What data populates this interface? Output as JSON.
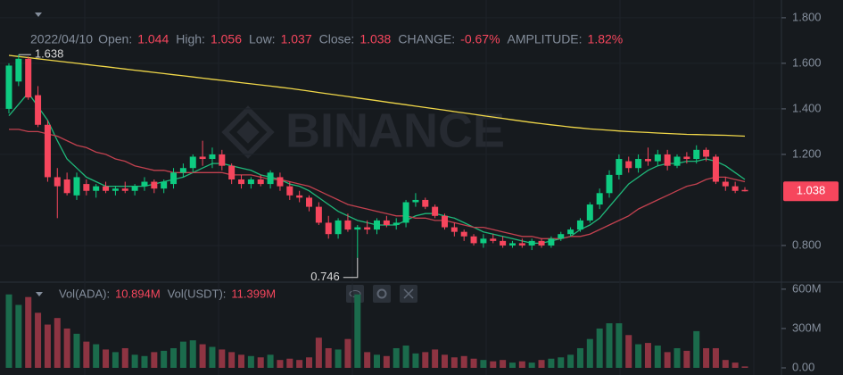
{
  "chart_data": {
    "type": "candlestick",
    "watermark": "BINANCE",
    "date": "2022/04/10",
    "header": [
      {
        "label": "Open:",
        "field": "open"
      },
      {
        "label": "High:",
        "field": "high"
      },
      {
        "label": "Low:",
        "field": "low"
      },
      {
        "label": "Close:",
        "field": "close"
      },
      {
        "label": "CHANGE:",
        "value": "-0.67%"
      },
      {
        "label": "AMPLITUDE:",
        "value": "1.82%"
      }
    ],
    "categories": [
      null,
      null,
      null,
      null,
      null,
      null,
      null,
      null,
      null,
      null,
      null,
      null,
      null,
      null,
      null,
      null,
      null,
      null,
      null,
      null,
      null,
      null,
      null,
      null,
      null,
      null,
      null,
      null,
      null,
      null,
      null,
      null,
      null,
      null,
      null,
      null,
      null,
      null,
      null,
      null,
      null,
      null,
      null,
      null,
      null,
      null,
      null,
      null,
      null,
      null,
      null,
      null,
      null,
      null,
      null,
      null,
      null,
      null,
      null,
      null,
      null,
      null,
      null,
      null,
      null,
      null,
      null,
      null,
      null,
      null,
      null,
      null,
      null,
      null,
      null,
      null,
      null
    ],
    "open": [
      1.4,
      1.52,
      1.62,
      1.46,
      1.33,
      1.1,
      1.09,
      1.02,
      1.07,
      1.04,
      1.06,
      1.04,
      1.05,
      1.04,
      1.06,
      1.08,
      1.05,
      1.07,
      1.12,
      1.14,
      1.19,
      1.18,
      1.2,
      1.15,
      1.09,
      1.07,
      1.09,
      1.07,
      1.1,
      1.06,
      1.02,
      1.01,
      0.97,
      0.9,
      0.85,
      0.91,
      0.87,
      0.88,
      0.87,
      0.91,
      0.89,
      0.9,
      0.99,
      1.0,
      0.97,
      0.93,
      0.88,
      0.86,
      0.84,
      0.81,
      0.83,
      0.82,
      0.8,
      0.81,
      0.8,
      0.82,
      0.8,
      0.83,
      0.85,
      0.87,
      0.91,
      0.98,
      1.03,
      1.11,
      1.17,
      1.14,
      1.18,
      1.17,
      1.2,
      1.15,
      1.19,
      1.18,
      1.22,
      1.19,
      1.08,
      1.06,
      1.044
    ],
    "high": [
      1.6,
      1.638,
      1.63,
      1.5,
      1.35,
      1.14,
      1.12,
      1.12,
      1.09,
      1.07,
      1.08,
      1.06,
      1.08,
      1.07,
      1.1,
      1.09,
      1.09,
      1.14,
      1.16,
      1.2,
      1.26,
      1.23,
      1.22,
      1.16,
      1.11,
      1.1,
      1.11,
      1.13,
      1.12,
      1.08,
      1.04,
      1.02,
      0.99,
      0.93,
      0.92,
      0.94,
      0.89,
      0.91,
      0.92,
      0.93,
      0.92,
      1.0,
      1.03,
      1.01,
      0.98,
      0.94,
      0.9,
      0.87,
      0.85,
      0.85,
      0.85,
      0.84,
      0.82,
      0.83,
      0.83,
      0.83,
      0.84,
      0.86,
      0.88,
      0.92,
      0.99,
      1.05,
      1.13,
      1.2,
      1.19,
      1.2,
      1.23,
      1.22,
      1.22,
      1.2,
      1.21,
      1.24,
      1.23,
      1.2,
      1.1,
      1.08,
      1.056
    ],
    "low": [
      1.38,
      1.5,
      1.44,
      1.32,
      1.08,
      0.92,
      1.02,
      1.0,
      1.02,
      1.01,
      1.03,
      1.02,
      1.03,
      1.02,
      1.04,
      1.03,
      1.03,
      1.05,
      1.1,
      1.12,
      1.15,
      1.14,
      1.13,
      1.07,
      1.05,
      1.05,
      1.06,
      1.05,
      1.04,
      1.0,
      0.99,
      0.95,
      0.89,
      0.83,
      0.83,
      0.86,
      0.746,
      0.85,
      0.85,
      0.88,
      0.87,
      0.88,
      0.97,
      0.96,
      0.92,
      0.87,
      0.84,
      0.82,
      0.8,
      0.79,
      0.81,
      0.79,
      0.79,
      0.79,
      0.78,
      0.79,
      0.79,
      0.82,
      0.84,
      0.86,
      0.9,
      0.96,
      1.01,
      1.09,
      1.12,
      1.12,
      1.15,
      1.15,
      1.13,
      1.14,
      1.16,
      1.16,
      1.17,
      1.07,
      1.04,
      1.03,
      1.037
    ],
    "close": [
      1.59,
      1.62,
      1.45,
      1.33,
      1.1,
      1.06,
      1.03,
      1.1,
      1.04,
      1.06,
      1.04,
      1.05,
      1.04,
      1.06,
      1.08,
      1.05,
      1.08,
      1.12,
      1.14,
      1.19,
      1.18,
      1.2,
      1.15,
      1.09,
      1.07,
      1.09,
      1.07,
      1.12,
      1.06,
      1.02,
      1.01,
      0.97,
      0.9,
      0.85,
      0.91,
      0.87,
      0.88,
      0.87,
      0.91,
      0.89,
      0.9,
      0.99,
      1.0,
      0.97,
      0.93,
      0.88,
      0.86,
      0.84,
      0.81,
      0.83,
      0.82,
      0.8,
      0.81,
      0.8,
      0.82,
      0.8,
      0.83,
      0.85,
      0.87,
      0.91,
      0.98,
      1.03,
      1.11,
      1.18,
      1.14,
      1.18,
      1.17,
      1.2,
      1.15,
      1.19,
      1.18,
      1.22,
      1.19,
      1.08,
      1.06,
      1.04,
      1.038
    ],
    "up_color": "#0ecb81",
    "down_color": "#f6465d",
    "ylim": [
      0.643,
      1.878
    ],
    "yticks": [
      {
        "value": 1.8,
        "label": "1.800"
      },
      {
        "value": 1.6,
        "label": "1.600"
      },
      {
        "value": 1.4,
        "label": "1.400"
      },
      {
        "value": 1.2,
        "label": "1.200"
      },
      {
        "value": 0.8,
        "label": "0.800"
      }
    ],
    "grid": true,
    "ma": [
      {
        "color": "#f0d749",
        "values": [
          1.635,
          1.63,
          1.625,
          1.62,
          1.615,
          1.61,
          1.605,
          1.6,
          1.595,
          1.59,
          1.585,
          1.58,
          1.575,
          1.57,
          1.565,
          1.56,
          1.555,
          1.55,
          1.545,
          1.54,
          1.535,
          1.53,
          1.525,
          1.52,
          1.515,
          1.51,
          1.505,
          1.5,
          1.495,
          1.49,
          1.484,
          1.478,
          1.472,
          1.466,
          1.46,
          1.454,
          1.448,
          1.442,
          1.436,
          1.43,
          1.424,
          1.418,
          1.412,
          1.406,
          1.4,
          1.394,
          1.388,
          1.382,
          1.376,
          1.37,
          1.364,
          1.358,
          1.352,
          1.346,
          1.34,
          1.335,
          1.33,
          1.325,
          1.32,
          1.316,
          1.312,
          1.309,
          1.306,
          1.303,
          1.3,
          1.298,
          1.296,
          1.294,
          1.292,
          1.29,
          1.288,
          1.287,
          1.286,
          1.285,
          1.284,
          1.282,
          1.28
        ]
      },
      {
        "color": "#1fb87a",
        "values": [
          1.37,
          1.42,
          1.47,
          1.41,
          1.35,
          1.26,
          1.18,
          1.14,
          1.1,
          1.08,
          1.06,
          1.06,
          1.06,
          1.06,
          1.06,
          1.07,
          1.08,
          1.09,
          1.1,
          1.12,
          1.14,
          1.16,
          1.16,
          1.15,
          1.14,
          1.13,
          1.11,
          1.1,
          1.09,
          1.07,
          1.06,
          1.04,
          1.01,
          0.98,
          0.95,
          0.93,
          0.91,
          0.9,
          0.89,
          0.89,
          0.89,
          0.91,
          0.93,
          0.94,
          0.94,
          0.93,
          0.92,
          0.9,
          0.88,
          0.86,
          0.85,
          0.84,
          0.83,
          0.82,
          0.81,
          0.81,
          0.82,
          0.83,
          0.84,
          0.87,
          0.89,
          0.92,
          0.97,
          1.02,
          1.07,
          1.1,
          1.13,
          1.15,
          1.16,
          1.16,
          1.17,
          1.17,
          1.18,
          1.17,
          1.15,
          1.12,
          1.09
        ]
      },
      {
        "color": "#c2414f",
        "values": [
          1.31,
          1.31,
          1.3,
          1.3,
          1.29,
          1.28,
          1.26,
          1.24,
          1.23,
          1.21,
          1.2,
          1.18,
          1.17,
          1.15,
          1.14,
          1.13,
          1.13,
          1.12,
          1.12,
          1.12,
          1.12,
          1.12,
          1.12,
          1.11,
          1.11,
          1.11,
          1.1,
          1.09,
          1.09,
          1.08,
          1.07,
          1.06,
          1.04,
          1.02,
          1.0,
          0.98,
          0.97,
          0.96,
          0.95,
          0.94,
          0.93,
          0.93,
          0.92,
          0.92,
          0.91,
          0.91,
          0.9,
          0.89,
          0.88,
          0.88,
          0.87,
          0.86,
          0.85,
          0.84,
          0.84,
          0.83,
          0.83,
          0.83,
          0.84,
          0.84,
          0.85,
          0.87,
          0.89,
          0.91,
          0.93,
          0.96,
          0.98,
          1.0,
          1.02,
          1.04,
          1.06,
          1.07,
          1.09,
          1.1,
          1.1,
          1.09,
          1.08
        ]
      }
    ],
    "volume": {
      "header": [
        {
          "label": "Vol(ADA):",
          "value": "10.894M"
        },
        {
          "label": "Vol(USDT):",
          "value": "11.399M"
        }
      ],
      "values": [
        560,
        480,
        540,
        420,
        330,
        380,
        300,
        260,
        200,
        180,
        140,
        120,
        150,
        100,
        90,
        120,
        130,
        150,
        200,
        210,
        180,
        160,
        140,
        120,
        100,
        90,
        80,
        100,
        60,
        70,
        60,
        80,
        230,
        150,
        140,
        220,
        560,
        120,
        100,
        90,
        150,
        170,
        110,
        120,
        140,
        100,
        80,
        90,
        70,
        60,
        50,
        60,
        40,
        50,
        40,
        60,
        70,
        80,
        100,
        150,
        220,
        300,
        340,
        340,
        250,
        180,
        190,
        170,
        120,
        150,
        130,
        280,
        150,
        150,
        60,
        40,
        10.894
      ],
      "up_color": "#1b6b4c",
      "down_color": "#8e3442",
      "ylim": [
        0,
        640
      ],
      "yticks": [
        {
          "value": 600,
          "label": "600M"
        },
        {
          "value": 300,
          "label": "300M"
        },
        {
          "value": 0,
          "label": "0.00"
        }
      ]
    }
  }
}
